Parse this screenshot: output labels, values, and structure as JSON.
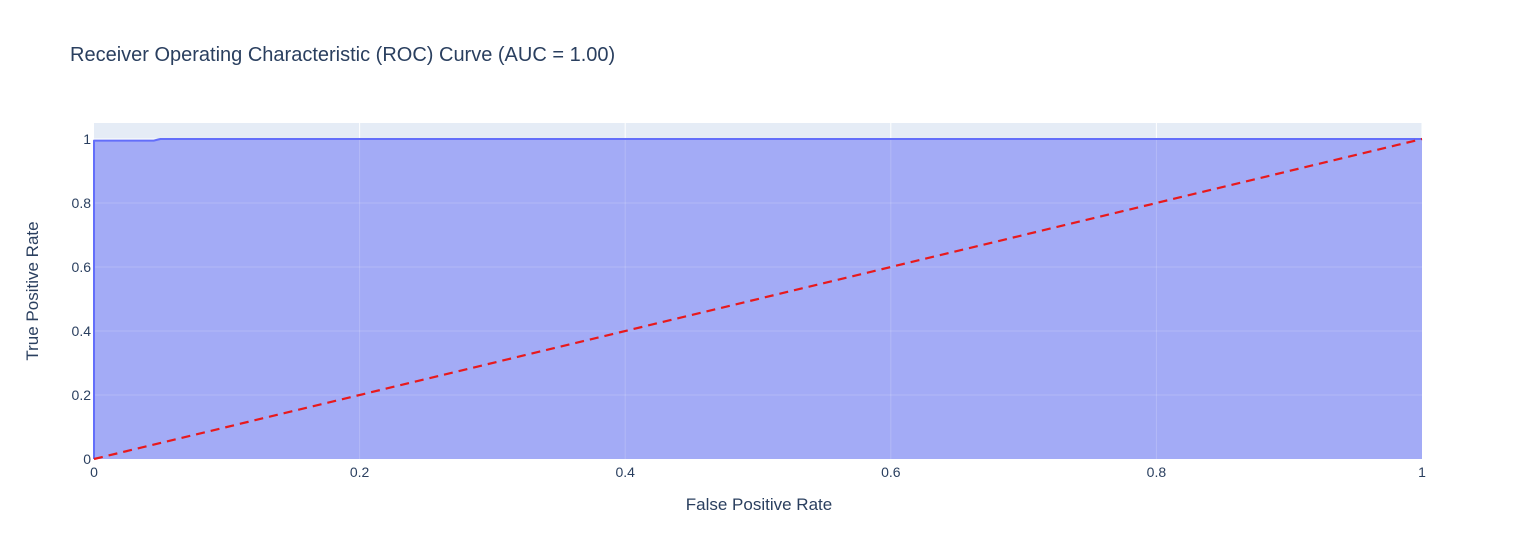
{
  "chart_data": {
    "type": "area",
    "title": "Receiver Operating Characteristic (ROC) Curve (AUC = 1.00)",
    "xlabel": "False Positive Rate",
    "ylabel": "True Positive Rate",
    "xlim": [
      0,
      1
    ],
    "ylim": [
      0,
      1.05
    ],
    "x_ticks": [
      0,
      0.2,
      0.4,
      0.6,
      0.8,
      1
    ],
    "x_tick_labels": [
      "0",
      "0.2",
      "0.4",
      "0.6",
      "0.8",
      "1"
    ],
    "y_ticks": [
      0,
      0.2,
      0.4,
      0.6,
      0.8,
      1
    ],
    "y_tick_labels": [
      "0",
      "0.2",
      "0.4",
      "0.6",
      "0.8",
      "1"
    ],
    "grid": true,
    "legend": "none",
    "series": [
      {
        "fill": "tozeroy",
        "color": "#636efa",
        "fill_color": "#a3abf6",
        "x": [
          0,
          0,
          0.045,
          0.048,
          0.05,
          1
        ],
        "y": [
          0,
          0.995,
          0.995,
          0.998,
          1.0,
          1.0
        ]
      },
      {
        "style": "dashed",
        "color": "#e8191c",
        "x": [
          0,
          1
        ],
        "y": [
          0,
          1
        ]
      }
    ],
    "colors": {
      "plot_background": "#e5ecf6",
      "gridline": "#ffffff",
      "text": "#2a3f5f"
    }
  }
}
